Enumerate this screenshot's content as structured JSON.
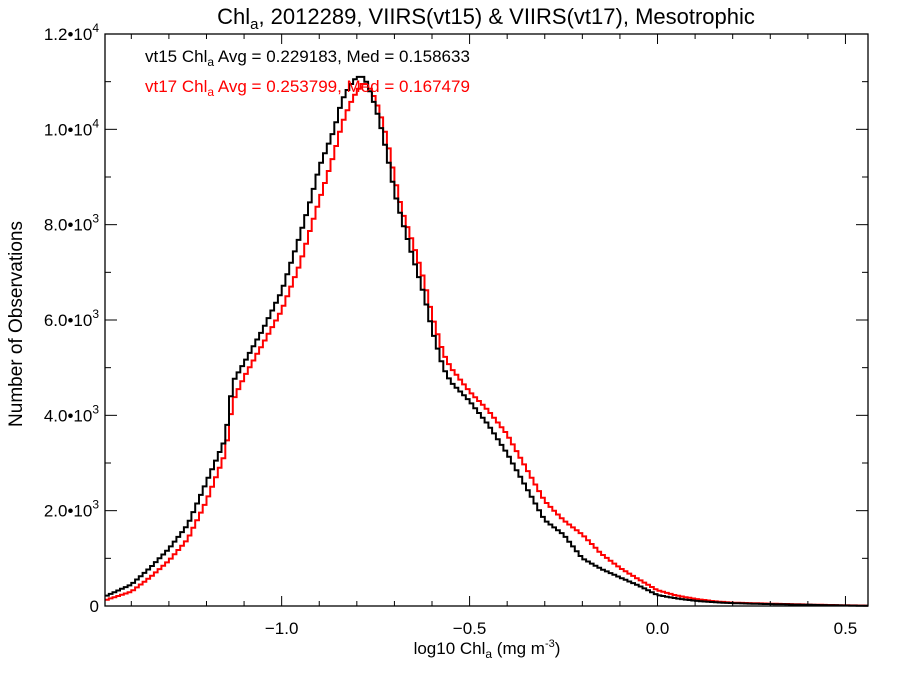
{
  "chart_data": {
    "type": "histogram-step",
    "title": {
      "prefix": "Chl",
      "sub": "a",
      "suffix": ", 2012289, VIIRS(vt15) & VIIRS(vt17), Mesotrophic"
    },
    "xlabel": {
      "prefix": "log10 Chl",
      "sub": "a",
      "mid": " (mg m",
      "sup": "-3",
      "suffix": ")"
    },
    "ylabel": "Number of Observations",
    "xlim": [
      -1.47,
      0.56
    ],
    "ylim": [
      0,
      12000
    ],
    "x_ticks": [
      {
        "value": -1.0,
        "label": "−1.0"
      },
      {
        "value": -0.5,
        "label": "−0.5"
      },
      {
        "value": 0.0,
        "label": "0.0"
      },
      {
        "value": 0.5,
        "label": "0.5"
      }
    ],
    "y_ticks": [
      {
        "value": 0,
        "mant": "0",
        "exp": ""
      },
      {
        "value": 2000,
        "mant": "2.0•10",
        "exp": "3"
      },
      {
        "value": 4000,
        "mant": "4.0•10",
        "exp": "3"
      },
      {
        "value": 6000,
        "mant": "6.0•10",
        "exp": "3"
      },
      {
        "value": 8000,
        "mant": "8.0•10",
        "exp": "3"
      },
      {
        "value": 10000,
        "mant": "1.0•10",
        "exp": "4"
      },
      {
        "value": 12000,
        "mant": "1.2•10",
        "exp": "4"
      }
    ],
    "bin_width": 0.01,
    "series": [
      {
        "name": "vt15",
        "color": "#000000",
        "label": {
          "pre": "vt15 Chl",
          "sub": "a",
          "post": " Avg = 0.229183, Med = 0.158633"
        },
        "points": [
          [
            -1.47,
            200
          ],
          [
            -1.4,
            450
          ],
          [
            -1.35,
            800
          ],
          [
            -1.3,
            1200
          ],
          [
            -1.25,
            1700
          ],
          [
            -1.2,
            2600
          ],
          [
            -1.15,
            3500
          ],
          [
            -1.13,
            4700
          ],
          [
            -1.1,
            5100
          ],
          [
            -1.05,
            5800
          ],
          [
            -1.0,
            6600
          ],
          [
            -0.95,
            7800
          ],
          [
            -0.92,
            8600
          ],
          [
            -0.9,
            9200
          ],
          [
            -0.88,
            9600
          ],
          [
            -0.86,
            10000
          ],
          [
            -0.84,
            10600
          ],
          [
            -0.82,
            10900
          ],
          [
            -0.8,
            11100
          ],
          [
            -0.78,
            11100
          ],
          [
            -0.76,
            10700
          ],
          [
            -0.74,
            10200
          ],
          [
            -0.72,
            9500
          ],
          [
            -0.7,
            8700
          ],
          [
            -0.68,
            8100
          ],
          [
            -0.65,
            7300
          ],
          [
            -0.62,
            6500
          ],
          [
            -0.6,
            5800
          ],
          [
            -0.57,
            5000
          ],
          [
            -0.55,
            4700
          ],
          [
            -0.5,
            4300
          ],
          [
            -0.45,
            3800
          ],
          [
            -0.4,
            3200
          ],
          [
            -0.35,
            2500
          ],
          [
            -0.3,
            1800
          ],
          [
            -0.25,
            1500
          ],
          [
            -0.2,
            1000
          ],
          [
            -0.15,
            780
          ],
          [
            -0.1,
            600
          ],
          [
            -0.05,
            430
          ],
          [
            0.0,
            230
          ],
          [
            0.05,
            160
          ],
          [
            0.1,
            110
          ],
          [
            0.15,
            80
          ],
          [
            0.2,
            60
          ],
          [
            0.3,
            40
          ],
          [
            0.4,
            25
          ],
          [
            0.5,
            10
          ],
          [
            0.56,
            5
          ]
        ]
      },
      {
        "name": "vt17",
        "color": "#ff0000",
        "label": {
          "pre": "vt17 Chl",
          "sub": "a",
          "post": " Avg = 0.253799, Med = 0.167479"
        },
        "points": [
          [
            -1.47,
            120
          ],
          [
            -1.4,
            300
          ],
          [
            -1.35,
            600
          ],
          [
            -1.3,
            950
          ],
          [
            -1.25,
            1400
          ],
          [
            -1.2,
            2200
          ],
          [
            -1.15,
            3200
          ],
          [
            -1.13,
            4300
          ],
          [
            -1.1,
            4800
          ],
          [
            -1.05,
            5500
          ],
          [
            -1.0,
            6200
          ],
          [
            -0.95,
            7200
          ],
          [
            -0.92,
            8000
          ],
          [
            -0.9,
            8500
          ],
          [
            -0.88,
            9000
          ],
          [
            -0.86,
            9500
          ],
          [
            -0.84,
            10100
          ],
          [
            -0.82,
            10500
          ],
          [
            -0.8,
            10800
          ],
          [
            -0.78,
            11000
          ],
          [
            -0.76,
            10800
          ],
          [
            -0.74,
            10400
          ],
          [
            -0.72,
            9800
          ],
          [
            -0.7,
            9000
          ],
          [
            -0.68,
            8300
          ],
          [
            -0.65,
            7600
          ],
          [
            -0.62,
            6800
          ],
          [
            -0.6,
            6100
          ],
          [
            -0.57,
            5300
          ],
          [
            -0.55,
            5000
          ],
          [
            -0.5,
            4500
          ],
          [
            -0.45,
            4100
          ],
          [
            -0.4,
            3600
          ],
          [
            -0.35,
            2900
          ],
          [
            -0.3,
            2200
          ],
          [
            -0.25,
            1800
          ],
          [
            -0.2,
            1500
          ],
          [
            -0.15,
            1100
          ],
          [
            -0.1,
            800
          ],
          [
            -0.05,
            560
          ],
          [
            0.0,
            330
          ],
          [
            0.05,
            220
          ],
          [
            0.1,
            150
          ],
          [
            0.15,
            100
          ],
          [
            0.2,
            70
          ],
          [
            0.3,
            50
          ],
          [
            0.4,
            30
          ],
          [
            0.5,
            15
          ],
          [
            0.56,
            8
          ]
        ]
      }
    ]
  }
}
